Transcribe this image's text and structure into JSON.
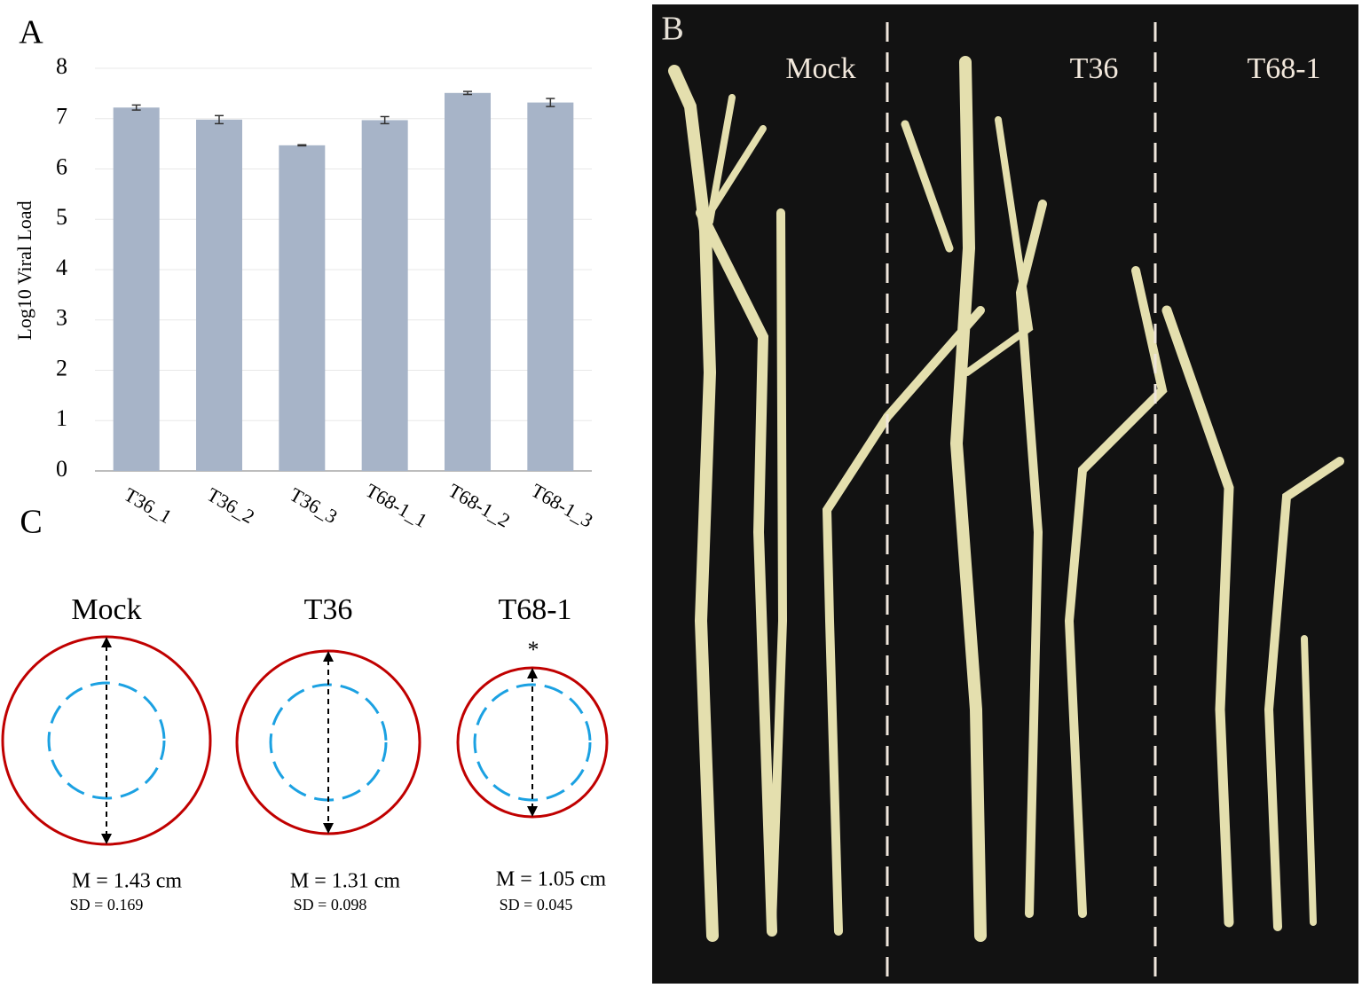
{
  "chart_data": {
    "type": "bar",
    "panel_label": "A",
    "y_label": "Log10 Viral Load",
    "categories": [
      "T36_1",
      "T36_2",
      "T36_3",
      "T68-1_1",
      "T68-1_2",
      "T68-1_3"
    ],
    "values": [
      7.22,
      6.98,
      6.47,
      6.97,
      7.51,
      7.32
    ],
    "errors": [
      0.05,
      0.08,
      0.01,
      0.07,
      0.03,
      0.08
    ],
    "color": "#a7b4c8",
    "ylim": [
      0,
      8
    ],
    "yticks": [
      0,
      1,
      2,
      3,
      4,
      5,
      6,
      7,
      8
    ],
    "grid": true
  },
  "photo": {
    "panel_label": "B",
    "labels": [
      "Mock",
      "T36",
      "T68-1"
    ]
  },
  "diagram": {
    "panel_label": "C",
    "items": [
      {
        "title": "Mock",
        "mean": "M = 1.43 cm",
        "sd": "SD = 0.169"
      },
      {
        "title": "T36",
        "mean": "M = 1.31 cm",
        "sd": "SD = 0.098"
      },
      {
        "title": "T68-1",
        "mean": "M = 1.05 cm",
        "sd": "SD = 0.045",
        "mark": "*"
      }
    ]
  }
}
